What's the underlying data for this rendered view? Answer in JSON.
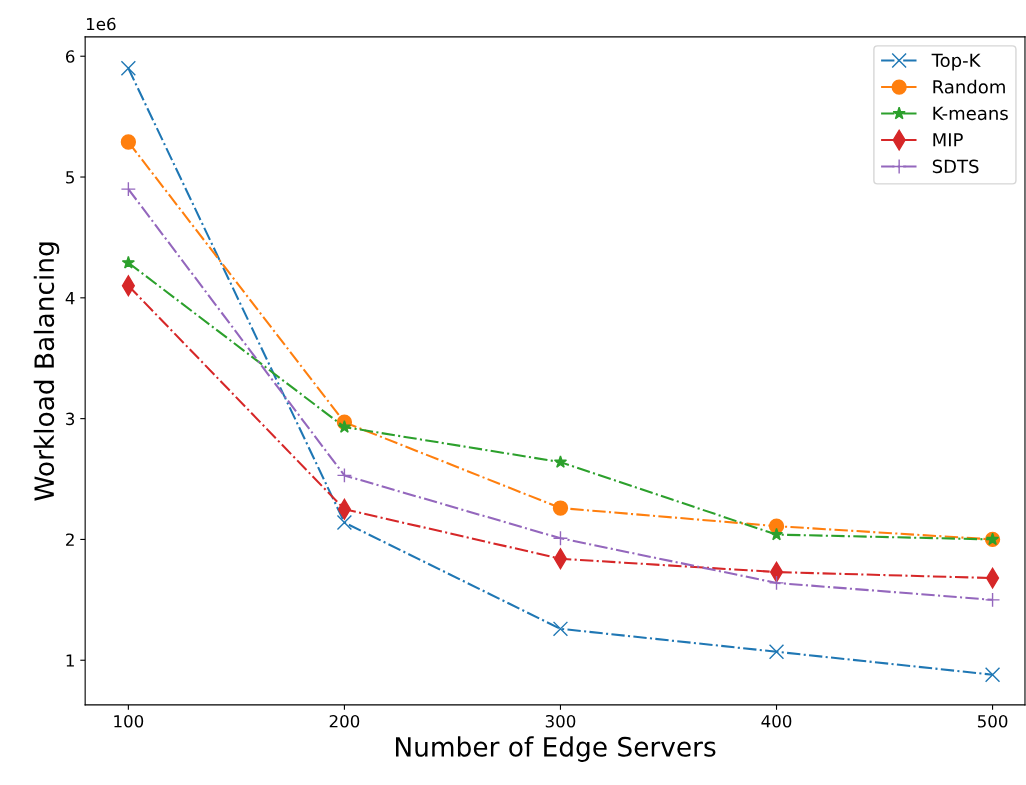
{
  "chart_data": {
    "type": "line",
    "xlabel": "Number of Edge Servers",
    "ylabel": "Workload Balancing",
    "x": [
      100,
      200,
      300,
      400,
      500
    ],
    "series": [
      {
        "name": "Top-K",
        "color": "#1f77b4",
        "marker": "cross",
        "values": [
          5.9,
          2.14,
          1.26,
          1.07,
          0.88
        ]
      },
      {
        "name": "Random",
        "color": "#ff7f0e",
        "marker": "circle",
        "values": [
          5.29,
          2.97,
          2.26,
          2.11,
          2.0
        ]
      },
      {
        "name": "K-means",
        "color": "#2ca02c",
        "marker": "star",
        "values": [
          4.29,
          2.93,
          2.64,
          2.04,
          2.0
        ]
      },
      {
        "name": "MIP",
        "color": "#d62728",
        "marker": "diamond",
        "values": [
          4.1,
          2.25,
          1.84,
          1.73,
          1.68
        ]
      },
      {
        "name": "SDTS",
        "color": "#9467bd",
        "marker": "plus",
        "values": [
          4.9,
          2.53,
          2.01,
          1.64,
          1.5
        ]
      }
    ],
    "line_style": "dashdot",
    "xlim": [
      80,
      515
    ],
    "xticks": [
      100,
      200,
      300,
      400,
      500
    ],
    "ylim": [
      0.63,
      6.16
    ],
    "yticks": [
      1,
      2,
      3,
      4,
      5,
      6
    ],
    "annotations": [
      "1e6"
    ],
    "legend": "top right",
    "grid": false
  }
}
